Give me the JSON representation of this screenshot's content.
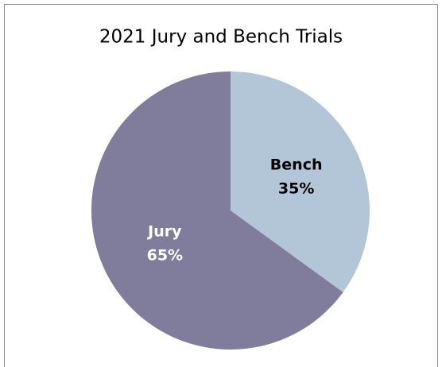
{
  "chart_data": {
    "type": "pie",
    "title": "2021 Jury and Bench Trials",
    "categories": [
      "Bench",
      "Jury"
    ],
    "values": [
      35,
      65
    ],
    "value_labels": [
      "35%",
      "65%"
    ],
    "colors": [
      "#b3c6d8",
      "#807c9b"
    ],
    "label_colors": [
      "#000000",
      "#ffffff"
    ]
  }
}
